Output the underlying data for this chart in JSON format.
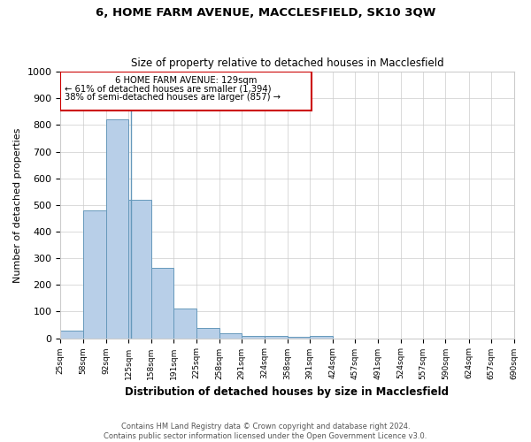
{
  "title": "6, HOME FARM AVENUE, MACCLESFIELD, SK10 3QW",
  "subtitle": "Size of property relative to detached houses in Macclesfield",
  "xlabel": "Distribution of detached houses by size in Macclesfield",
  "ylabel": "Number of detached properties",
  "footnote1": "Contains HM Land Registry data © Crown copyright and database right 2024.",
  "footnote2": "Contains public sector information licensed under the Open Government Licence v3.0.",
  "annotation_line1": "6 HOME FARM AVENUE: 129sqm",
  "annotation_line2": "← 61% of detached houses are smaller (1,394)",
  "annotation_line3": "38% of semi-detached houses are larger (857) →",
  "bar_color": "#b8cfe8",
  "bar_edge_color": "#6699bb",
  "annotation_box_color": "#cc0000",
  "property_sqm": 129,
  "bin_edges": [
    25,
    58,
    92,
    125,
    158,
    191,
    225,
    258,
    291,
    324,
    358,
    391,
    424,
    457,
    491,
    524,
    557,
    590,
    624,
    657,
    690
  ],
  "bar_heights": [
    28,
    480,
    820,
    520,
    265,
    110,
    38,
    20,
    10,
    8,
    5,
    8,
    0,
    0,
    0,
    0,
    0,
    0,
    0,
    0
  ],
  "ylim": [
    0,
    1000
  ],
  "yticks": [
    0,
    100,
    200,
    300,
    400,
    500,
    600,
    700,
    800,
    900,
    1000
  ],
  "bg_color": "#ffffff",
  "grid_color": "#cccccc"
}
